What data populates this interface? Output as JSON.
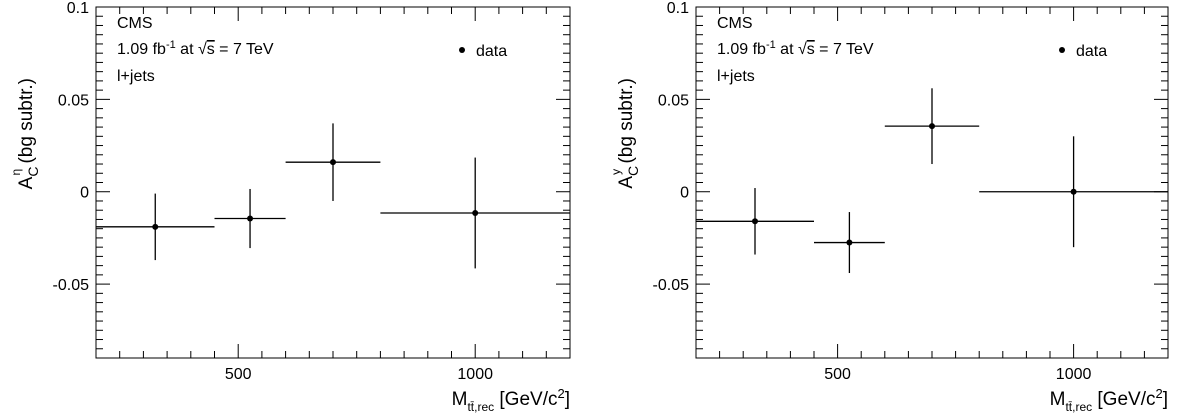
{
  "chart_data": [
    {
      "type": "scatter",
      "experiment": "CMS",
      "lumi_prefix": "1.09 fb",
      "lumi_exp": "-1",
      "lumi_mid": " at ",
      "lumi_sqrt": "√",
      "lumi_s": "s",
      "lumi_energy": " = 7 TeV",
      "channel": "l+jets",
      "legend": [
        "data"
      ],
      "legend_placement": "top-right",
      "ylabel_main": "A",
      "ylabel_sub": "C",
      "ylabel_sup": "η",
      "ylabel_rest": " (bg subtr.)",
      "xlabel_main": "M",
      "xlabel_sub": "tt̄,rec",
      "xlabel_units_pre": " [GeV/c",
      "xlabel_units_sup": "2",
      "xlabel_units_post": "]",
      "xlim": [
        200,
        1200
      ],
      "ylim": [
        -0.09,
        0.1
      ],
      "x_ticks": [
        500,
        1000
      ],
      "y_ticks": [
        -0.05,
        0,
        0.05,
        0.1
      ],
      "y_tick_labels": [
        "-0.05",
        "0",
        "0.05",
        "0.1"
      ],
      "x_tick_labels": [
        "500",
        "1000"
      ],
      "grid": false,
      "points": [
        {
          "x": 325,
          "x_low": 200,
          "x_high": 450,
          "y": -0.019,
          "y_err": 0.018
        },
        {
          "x": 525,
          "x_low": 450,
          "x_high": 600,
          "y": -0.0145,
          "y_err": 0.016
        },
        {
          "x": 700,
          "x_low": 600,
          "x_high": 800,
          "y": 0.016,
          "y_err": 0.021
        },
        {
          "x": 1000,
          "x_low": 800,
          "x_high": 1200,
          "y": -0.0115,
          "y_err": 0.03
        }
      ]
    },
    {
      "type": "scatter",
      "experiment": "CMS",
      "lumi_prefix": "1.09 fb",
      "lumi_exp": "-1",
      "lumi_mid": " at ",
      "lumi_sqrt": "√",
      "lumi_s": "s",
      "lumi_energy": " = 7 TeV",
      "channel": "l+jets",
      "legend": [
        "data"
      ],
      "legend_placement": "top-right",
      "ylabel_main": "A",
      "ylabel_sub": "C",
      "ylabel_sup": "y",
      "ylabel_rest": " (bg subtr.)",
      "xlabel_main": "M",
      "xlabel_sub": "tt̄,rec",
      "xlabel_units_pre": " [GeV/c",
      "xlabel_units_sup": "2",
      "xlabel_units_post": "]",
      "xlim": [
        200,
        1200
      ],
      "ylim": [
        -0.09,
        0.1
      ],
      "x_ticks": [
        500,
        1000
      ],
      "y_ticks": [
        -0.05,
        0,
        0.05,
        0.1
      ],
      "y_tick_labels": [
        "-0.05",
        "0",
        "0.05",
        "0.1"
      ],
      "x_tick_labels": [
        "500",
        "1000"
      ],
      "grid": false,
      "points": [
        {
          "x": 325,
          "x_low": 200,
          "x_high": 450,
          "y": -0.016,
          "y_err": 0.018
        },
        {
          "x": 525,
          "x_low": 450,
          "x_high": 600,
          "y": -0.0275,
          "y_err": 0.0165
        },
        {
          "x": 700,
          "x_low": 600,
          "x_high": 800,
          "y": 0.0355,
          "y_err": 0.0205
        },
        {
          "x": 1000,
          "x_low": 800,
          "x_high": 1200,
          "y": 0.0,
          "y_err": 0.03
        }
      ]
    }
  ]
}
